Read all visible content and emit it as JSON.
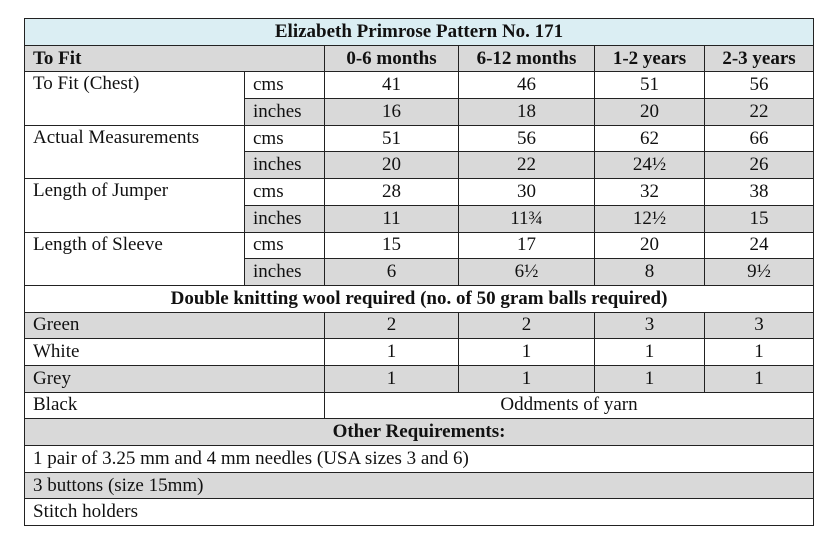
{
  "title": "Elizabeth Primrose Pattern No. 171",
  "header": {
    "label": "To Fit",
    "columns": [
      "0-6 months",
      "6-12 months",
      "1-2 years",
      "2-3 years"
    ]
  },
  "measurements": [
    {
      "label": "To Fit (Chest)",
      "rows": [
        {
          "unit": "cms",
          "values": [
            "41",
            "46",
            "51",
            "56"
          ]
        },
        {
          "unit": "inches",
          "values": [
            "16",
            "18",
            "20",
            "22"
          ]
        }
      ]
    },
    {
      "label": "Actual Measurements",
      "rows": [
        {
          "unit": "cms",
          "values": [
            "51",
            "56",
            "62",
            "66"
          ]
        },
        {
          "unit": "inches",
          "values": [
            "20",
            "22",
            "24½",
            "26"
          ]
        }
      ]
    },
    {
      "label": "Length of Jumper",
      "rows": [
        {
          "unit": "cms",
          "values": [
            "28",
            "30",
            "32",
            "38"
          ]
        },
        {
          "unit": "inches",
          "values": [
            "11",
            "11¾",
            "12½",
            "15"
          ]
        }
      ]
    },
    {
      "label": "Length of Sleeve",
      "rows": [
        {
          "unit": "cms",
          "values": [
            "15",
            "17",
            "20",
            "24"
          ]
        },
        {
          "unit": "inches",
          "values": [
            "6",
            "6½",
            "8",
            "9½"
          ]
        }
      ]
    }
  ],
  "wool": {
    "title": "Double knitting wool required (no. of 50 gram balls required)",
    "rows": [
      {
        "label": "Green",
        "values": [
          "2",
          "2",
          "3",
          "3"
        ]
      },
      {
        "label": "White",
        "values": [
          "1",
          "1",
          "1",
          "1"
        ]
      },
      {
        "label": "Grey",
        "values": [
          "1",
          "1",
          "1",
          "1"
        ]
      },
      {
        "label": "Black",
        "values": [
          "Oddments of yarn"
        ]
      }
    ]
  },
  "requirements": {
    "title": "Other Requirements:",
    "items": [
      "1 pair of 3.25 mm and 4 mm needles (USA sizes 3 and 6)",
      "3 buttons (size 15mm)",
      "Stitch holders"
    ]
  }
}
